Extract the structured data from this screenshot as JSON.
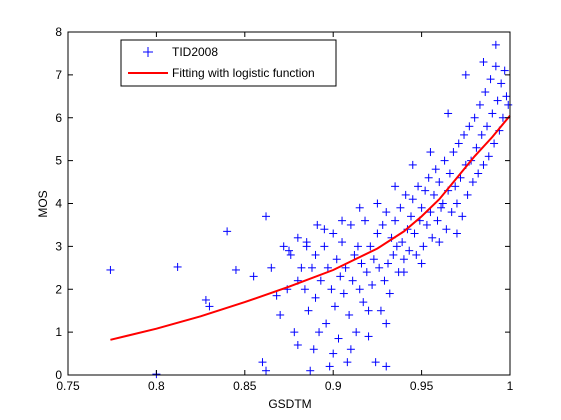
{
  "chart_data": {
    "type": "scatter",
    "xlabel": "GSDTM",
    "ylabel": "MOS",
    "xlim": [
      0.75,
      1.0
    ],
    "ylim": [
      0,
      8
    ],
    "xticks": [
      "0.75",
      "0.8",
      "0.85",
      "0.9",
      "0.95",
      "1"
    ],
    "yticks": [
      "0",
      "1",
      "2",
      "3",
      "4",
      "5",
      "6",
      "7",
      "8"
    ],
    "grid": false,
    "legend_position": "top-left",
    "colors": {
      "scatter": "#0000ff",
      "fit": "#ff0000",
      "axes": "#000000",
      "background": "#ffffff"
    },
    "series": [
      {
        "name": "TID2008",
        "marker": "plus",
        "points": [
          [
            0.774,
            2.45
          ],
          [
            0.8,
            0.02
          ],
          [
            0.812,
            2.52
          ],
          [
            0.828,
            1.75
          ],
          [
            0.83,
            1.6
          ],
          [
            0.84,
            3.35
          ],
          [
            0.845,
            2.45
          ],
          [
            0.855,
            2.3
          ],
          [
            0.86,
            0.3
          ],
          [
            0.862,
            3.7
          ],
          [
            0.862,
            0.1
          ],
          [
            0.865,
            2.5
          ],
          [
            0.868,
            1.85
          ],
          [
            0.87,
            1.4
          ],
          [
            0.872,
            3.0
          ],
          [
            0.874,
            2.0
          ],
          [
            0.876,
            2.8
          ],
          [
            0.878,
            1.0
          ],
          [
            0.88,
            3.2
          ],
          [
            0.88,
            0.7
          ],
          [
            0.882,
            2.5
          ],
          [
            0.884,
            2.0
          ],
          [
            0.885,
            3.0
          ],
          [
            0.886,
            1.5
          ],
          [
            0.887,
            0.1
          ],
          [
            0.888,
            2.5
          ],
          [
            0.889,
            0.6
          ],
          [
            0.89,
            2.8
          ],
          [
            0.891,
            3.5
          ],
          [
            0.892,
            1.0
          ],
          [
            0.893,
            2.2
          ],
          [
            0.895,
            3.0
          ],
          [
            0.896,
            1.2
          ],
          [
            0.897,
            2.5
          ],
          [
            0.898,
            0.2
          ],
          [
            0.899,
            2.0
          ],
          [
            0.9,
            3.3
          ],
          [
            0.901,
            1.6
          ],
          [
            0.902,
            2.7
          ],
          [
            0.903,
            0.85
          ],
          [
            0.904,
            2.3
          ],
          [
            0.905,
            3.1
          ],
          [
            0.906,
            1.9
          ],
          [
            0.907,
            2.5
          ],
          [
            0.908,
            0.3
          ],
          [
            0.909,
            1.4
          ],
          [
            0.91,
            3.5
          ],
          [
            0.911,
            2.2
          ],
          [
            0.912,
            2.8
          ],
          [
            0.913,
            1.0
          ],
          [
            0.914,
            3.0
          ],
          [
            0.915,
            2.0
          ],
          [
            0.916,
            2.6
          ],
          [
            0.917,
            1.7
          ],
          [
            0.918,
            3.6
          ],
          [
            0.919,
            2.4
          ],
          [
            0.92,
            0.9
          ],
          [
            0.921,
            3.0
          ],
          [
            0.922,
            2.1
          ],
          [
            0.923,
            2.7
          ],
          [
            0.924,
            0.3
          ],
          [
            0.925,
            3.3
          ],
          [
            0.926,
            2.5
          ],
          [
            0.927,
            1.5
          ],
          [
            0.928,
            3.5
          ],
          [
            0.929,
            2.2
          ],
          [
            0.93,
            3.8
          ],
          [
            0.93,
            0.2
          ],
          [
            0.931,
            2.6
          ],
          [
            0.932,
            1.9
          ],
          [
            0.933,
            3.2
          ],
          [
            0.934,
            2.8
          ],
          [
            0.935,
            3.6
          ],
          [
            0.936,
            3.0
          ],
          [
            0.937,
            2.4
          ],
          [
            0.938,
            3.9
          ],
          [
            0.939,
            3.1
          ],
          [
            0.94,
            2.7
          ],
          [
            0.941,
            4.2
          ],
          [
            0.942,
            3.4
          ],
          [
            0.943,
            2.9
          ],
          [
            0.944,
            3.7
          ],
          [
            0.945,
            4.1
          ],
          [
            0.946,
            3.3
          ],
          [
            0.947,
            2.8
          ],
          [
            0.948,
            4.4
          ],
          [
            0.949,
            3.6
          ],
          [
            0.95,
            3.9
          ],
          [
            0.951,
            3.0
          ],
          [
            0.952,
            4.3
          ],
          [
            0.953,
            3.5
          ],
          [
            0.954,
            4.6
          ],
          [
            0.955,
            3.8
          ],
          [
            0.956,
            3.2
          ],
          [
            0.957,
            4.2
          ],
          [
            0.958,
            4.8
          ],
          [
            0.959,
            3.6
          ],
          [
            0.96,
            4.5
          ],
          [
            0.961,
            3.9
          ],
          [
            0.962,
            4.0
          ],
          [
            0.963,
            5.0
          ],
          [
            0.964,
            3.4
          ],
          [
            0.965,
            4.3
          ],
          [
            0.966,
            4.7
          ],
          [
            0.967,
            3.8
          ],
          [
            0.968,
            5.2
          ],
          [
            0.969,
            4.4
          ],
          [
            0.97,
            4.0
          ],
          [
            0.971,
            5.4
          ],
          [
            0.972,
            4.6
          ],
          [
            0.973,
            3.7
          ],
          [
            0.974,
            5.6
          ],
          [
            0.975,
            4.9
          ],
          [
            0.976,
            4.2
          ],
          [
            0.977,
            5.8
          ],
          [
            0.978,
            5.0
          ],
          [
            0.979,
            4.5
          ],
          [
            0.98,
            6.0
          ],
          [
            0.981,
            5.3
          ],
          [
            0.982,
            4.7
          ],
          [
            0.983,
            6.3
          ],
          [
            0.984,
            5.6
          ],
          [
            0.985,
            4.9
          ],
          [
            0.986,
            6.6
          ],
          [
            0.987,
            5.8
          ],
          [
            0.988,
            5.1
          ],
          [
            0.989,
            6.9
          ],
          [
            0.99,
            6.1
          ],
          [
            0.991,
            5.4
          ],
          [
            0.992,
            7.2
          ],
          [
            0.993,
            6.4
          ],
          [
            0.994,
            5.7
          ],
          [
            0.995,
            6.8
          ],
          [
            0.996,
            6.0
          ],
          [
            0.997,
            7.1
          ],
          [
            0.998,
            6.5
          ],
          [
            0.999,
            6.3
          ],
          [
            0.992,
            7.7
          ],
          [
            0.985,
            7.3
          ],
          [
            0.975,
            7.0
          ],
          [
            0.965,
            6.1
          ],
          [
            0.955,
            5.2
          ],
          [
            0.945,
            4.9
          ],
          [
            0.935,
            4.4
          ],
          [
            0.925,
            4.0
          ],
          [
            0.915,
            3.9
          ],
          [
            0.905,
            3.6
          ],
          [
            0.895,
            3.4
          ],
          [
            0.885,
            3.1
          ],
          [
            0.875,
            2.9
          ],
          [
            0.97,
            3.3
          ],
          [
            0.96,
            3.1
          ],
          [
            0.95,
            2.6
          ],
          [
            0.94,
            2.4
          ],
          [
            0.93,
            1.2
          ],
          [
            0.92,
            1.5
          ],
          [
            0.91,
            0.6
          ],
          [
            0.9,
            0.5
          ],
          [
            0.89,
            1.8
          ],
          [
            0.88,
            2.2
          ]
        ]
      },
      {
        "name": "Fitting with logistic function",
        "type": "line",
        "points": [
          [
            0.774,
            0.82
          ],
          [
            0.8,
            1.08
          ],
          [
            0.825,
            1.37
          ],
          [
            0.85,
            1.7
          ],
          [
            0.875,
            2.06
          ],
          [
            0.9,
            2.45
          ],
          [
            0.925,
            2.95
          ],
          [
            0.94,
            3.35
          ],
          [
            0.95,
            3.7
          ],
          [
            0.96,
            4.1
          ],
          [
            0.97,
            4.6
          ],
          [
            0.98,
            5.1
          ],
          [
            0.99,
            5.55
          ],
          [
            1.0,
            6.05
          ]
        ]
      }
    ]
  }
}
